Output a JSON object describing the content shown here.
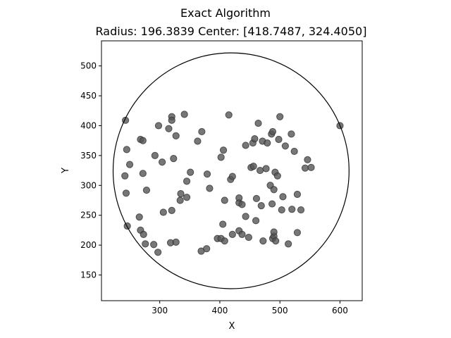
{
  "chart_data": {
    "type": "scatter",
    "title": "Exact Algorithm",
    "subtitle": "Radius: 196.3839   Center: [418.7487, 324.4050]",
    "xlabel": "X",
    "ylabel": "Y",
    "xlim": [
      203,
      637
    ],
    "ylim": [
      107,
      542
    ],
    "xticks": [
      300,
      400,
      500,
      600
    ],
    "yticks": [
      150,
      200,
      250,
      300,
      350,
      400,
      450,
      500
    ],
    "grid": false,
    "point_color": "#555555",
    "circle": {
      "center": [
        418.7487,
        324.405
      ],
      "radius": 196.3839
    },
    "points": [
      [
        243,
        409
      ],
      [
        245,
        360
      ],
      [
        250,
        335
      ],
      [
        242,
        316
      ],
      [
        244,
        287
      ],
      [
        246,
        232
      ],
      [
        268,
        377
      ],
      [
        272,
        375
      ],
      [
        272,
        320
      ],
      [
        278,
        292
      ],
      [
        266,
        247
      ],
      [
        268,
        225
      ],
      [
        273,
        218
      ],
      [
        276,
        202
      ],
      [
        290,
        201
      ],
      [
        292,
        350
      ],
      [
        298,
        400
      ],
      [
        297,
        188
      ],
      [
        304,
        339
      ],
      [
        306,
        255
      ],
      [
        315,
        395
      ],
      [
        320,
        415
      ],
      [
        320,
        409
      ],
      [
        320,
        258
      ],
      [
        318,
        204
      ],
      [
        323,
        345
      ],
      [
        327,
        383
      ],
      [
        327,
        205
      ],
      [
        334,
        275
      ],
      [
        335,
        286
      ],
      [
        341,
        419
      ],
      [
        345,
        307
      ],
      [
        345,
        280
      ],
      [
        351,
        322
      ],
      [
        363,
        374
      ],
      [
        370,
        390
      ],
      [
        369,
        190
      ],
      [
        378,
        194
      ],
      [
        379,
        319
      ],
      [
        383,
        295
      ],
      [
        396,
        211
      ],
      [
        402,
        211
      ],
      [
        402,
        347
      ],
      [
        406,
        359
      ],
      [
        408,
        275
      ],
      [
        405,
        235
      ],
      [
        408,
        207
      ],
      [
        415,
        418
      ],
      [
        418,
        310
      ],
      [
        421,
        315
      ],
      [
        421,
        218
      ],
      [
        432,
        271
      ],
      [
        432,
        279
      ],
      [
        432,
        224
      ],
      [
        437,
        268
      ],
      [
        437,
        218
      ],
      [
        443,
        248
      ],
      [
        443,
        367
      ],
      [
        448,
        213
      ],
      [
        452,
        330
      ],
      [
        455,
        371
      ],
      [
        456,
        332
      ],
      [
        458,
        378
      ],
      [
        461,
        278
      ],
      [
        460,
        241
      ],
      [
        464,
        404
      ],
      [
        467,
        325
      ],
      [
        469,
        266
      ],
      [
        471,
        374
      ],
      [
        472,
        207
      ],
      [
        477,
        328
      ],
      [
        479,
        371
      ],
      [
        484,
        300
      ],
      [
        486,
        386
      ],
      [
        488,
        390
      ],
      [
        487,
        269
      ],
      [
        488,
        211
      ],
      [
        490,
        215
      ],
      [
        490,
        293
      ],
      [
        490,
        222
      ],
      [
        492,
        322
      ],
      [
        493,
        207
      ],
      [
        496,
        316
      ],
      [
        498,
        377
      ],
      [
        500,
        415
      ],
      [
        503,
        259
      ],
      [
        505,
        281
      ],
      [
        509,
        366
      ],
      [
        514,
        202
      ],
      [
        519,
        386
      ],
      [
        520,
        260
      ],
      [
        524,
        357
      ],
      [
        529,
        285
      ],
      [
        529,
        221
      ],
      [
        535,
        259
      ],
      [
        542,
        329
      ],
      [
        546,
        343
      ],
      [
        552,
        330
      ],
      [
        600,
        400
      ]
    ]
  }
}
